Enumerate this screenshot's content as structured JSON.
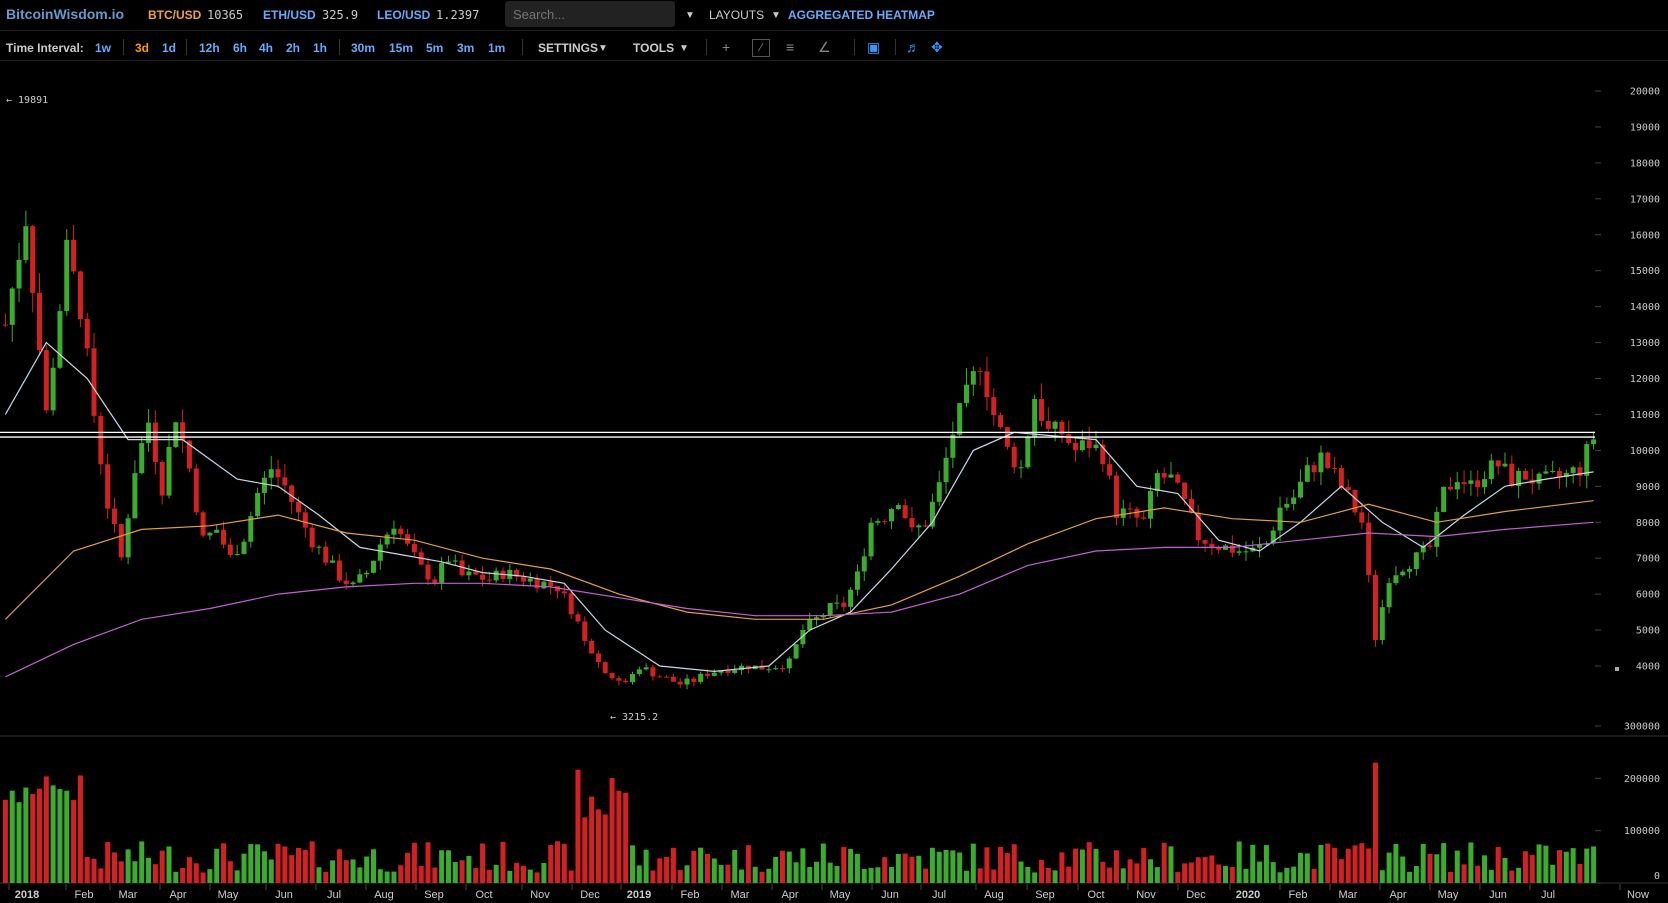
{
  "header": {
    "logo": "BitcoinWisdom.io",
    "tickers": [
      {
        "pair": "BTC/USD",
        "price": "10365",
        "color": "#f0a040"
      },
      {
        "pair": "ETH/USD",
        "price": "325.9",
        "color": "#6af"
      },
      {
        "pair": "LEO/USD",
        "price": "1.2397",
        "color": "#6af"
      }
    ],
    "search_placeholder": "Search...",
    "layouts": "LAYOUTS",
    "heatmap": "AGGREGATED HEATMAP"
  },
  "toolbar": {
    "time_interval_label": "Time Interval:",
    "intervals": [
      "1w",
      "3d",
      "1d",
      "12h",
      "6h",
      "4h",
      "2h",
      "1h",
      "30m",
      "15m",
      "5m",
      "3m",
      "1m"
    ],
    "active_interval": "3d",
    "settings": "SETTINGS",
    "tools": "TOOLS",
    "tool_icons": [
      "crosshair-icon",
      "trendline-icon",
      "horizontal-lines-icon",
      "fan-icon",
      "camera-icon",
      "bell-icon",
      "fullscreen-icon"
    ]
  },
  "chart_data": {
    "type": "candlestick",
    "price_axis": {
      "ticks": [
        20000,
        19000,
        18000,
        17000,
        16000,
        15000,
        14000,
        13000,
        12000,
        11000,
        10000,
        9000,
        8000,
        7000,
        6000,
        5000,
        4000
      ],
      "range": [
        3000,
        20500
      ]
    },
    "volume_axis": {
      "ticks": [
        "300000",
        "200000",
        "100000",
        "0"
      ],
      "range": [
        0,
        380000
      ]
    },
    "time_axis": [
      "2018",
      "Feb",
      "Mar",
      "Apr",
      "May",
      "Jun",
      "Jul",
      "Aug",
      "Sep",
      "Oct",
      "Nov",
      "Dec",
      "2019",
      "Feb",
      "Mar",
      "Apr",
      "May",
      "Jun",
      "Jul",
      "Aug",
      "Sep",
      "Oct",
      "Nov",
      "Dec",
      "2020",
      "Feb",
      "Mar",
      "Apr",
      "May",
      "Jun",
      "Jul",
      "Now"
    ],
    "annotations": {
      "high": "← 19891",
      "low": "← 3215.2"
    },
    "horizontal_lines": [
      10500,
      10370
    ],
    "series_colors": {
      "up": "#3aad2c",
      "down": "#d42020",
      "ma_short": "#c8d8e8",
      "ma_mid": "#e0a040",
      "ma_long": "#c060d0"
    },
    "close_path": [
      [
        0,
        13500
      ],
      [
        3,
        16500
      ],
      [
        6,
        11000
      ],
      [
        9,
        15500
      ],
      [
        11,
        14000
      ],
      [
        13,
        11000
      ],
      [
        15,
        8500
      ],
      [
        17,
        7000
      ],
      [
        19,
        9500
      ],
      [
        21,
        10800
      ],
      [
        23,
        9000
      ],
      [
        25,
        11000
      ],
      [
        27,
        9500
      ],
      [
        29,
        7500
      ],
      [
        31,
        7800
      ],
      [
        33,
        7000
      ],
      [
        35,
        7600
      ],
      [
        37,
        8800
      ],
      [
        39,
        9500
      ],
      [
        41,
        9000
      ],
      [
        43,
        8200
      ],
      [
        45,
        7500
      ],
      [
        47,
        7000
      ],
      [
        49,
        6500
      ],
      [
        51,
        6200
      ],
      [
        53,
        6600
      ],
      [
        55,
        7400
      ],
      [
        57,
        8000
      ],
      [
        59,
        7300
      ],
      [
        61,
        6700
      ],
      [
        63,
        6400
      ],
      [
        65,
        7000
      ],
      [
        67,
        6500
      ],
      [
        69,
        6500
      ],
      [
        71,
        6400
      ],
      [
        73,
        6600
      ],
      [
        75,
        6500
      ],
      [
        77,
        6400
      ],
      [
        79,
        6300
      ],
      [
        81,
        6200
      ],
      [
        83,
        5600
      ],
      [
        85,
        4800
      ],
      [
        87,
        4100
      ],
      [
        89,
        3700
      ],
      [
        91,
        3500
      ],
      [
        93,
        4000
      ],
      [
        95,
        3800
      ],
      [
        97,
        3650
      ],
      [
        99,
        3500
      ],
      [
        101,
        3600
      ],
      [
        103,
        3800
      ],
      [
        105,
        3900
      ],
      [
        107,
        3950
      ],
      [
        109,
        4000
      ],
      [
        111,
        3950
      ],
      [
        113,
        4000
      ],
      [
        115,
        4100
      ],
      [
        117,
        5000
      ],
      [
        119,
        5300
      ],
      [
        121,
        5600
      ],
      [
        123,
        5700
      ],
      [
        125,
        6500
      ],
      [
        127,
        8000
      ],
      [
        129,
        8200
      ],
      [
        131,
        8700
      ],
      [
        133,
        7700
      ],
      [
        135,
        8000
      ],
      [
        137,
        9000
      ],
      [
        139,
        10500
      ],
      [
        141,
        11500
      ],
      [
        143,
        12500
      ],
      [
        145,
        11000
      ],
      [
        147,
        10000
      ],
      [
        149,
        9500
      ],
      [
        151,
        11500
      ],
      [
        153,
        10500
      ],
      [
        155,
        10500
      ],
      [
        157,
        10000
      ],
      [
        159,
        10200
      ],
      [
        161,
        9900
      ],
      [
        163,
        8300
      ],
      [
        165,
        8200
      ],
      [
        167,
        8000
      ],
      [
        169,
        9300
      ],
      [
        171,
        9200
      ],
      [
        173,
        8500
      ],
      [
        175,
        7600
      ],
      [
        177,
        7400
      ],
      [
        179,
        7300
      ],
      [
        181,
        7200
      ],
      [
        183,
        7200
      ],
      [
        185,
        7400
      ],
      [
        187,
        8400
      ],
      [
        189,
        8700
      ],
      [
        191,
        9400
      ],
      [
        193,
        9800
      ],
      [
        195,
        9300
      ],
      [
        197,
        8700
      ],
      [
        199,
        8000
      ],
      [
        201,
        4800
      ],
      [
        203,
        6500
      ],
      [
        205,
        6800
      ],
      [
        207,
        7000
      ],
      [
        209,
        7300
      ],
      [
        211,
        8800
      ],
      [
        213,
        9300
      ],
      [
        215,
        9000
      ],
      [
        217,
        9400
      ],
      [
        219,
        9600
      ],
      [
        221,
        9200
      ],
      [
        223,
        9300
      ],
      [
        225,
        9100
      ],
      [
        227,
        9200
      ],
      [
        229,
        9300
      ],
      [
        231,
        9500
      ],
      [
        233,
        10365
      ]
    ],
    "ma_short_path": [
      [
        0,
        11000
      ],
      [
        6,
        13000
      ],
      [
        12,
        12000
      ],
      [
        18,
        10300
      ],
      [
        26,
        10300
      ],
      [
        34,
        9200
      ],
      [
        40,
        9000
      ],
      [
        46,
        8200
      ],
      [
        52,
        7300
      ],
      [
        58,
        7100
      ],
      [
        64,
        6900
      ],
      [
        70,
        6600
      ],
      [
        76,
        6500
      ],
      [
        82,
        6300
      ],
      [
        88,
        5000
      ],
      [
        96,
        4000
      ],
      [
        104,
        3850
      ],
      [
        112,
        4000
      ],
      [
        118,
        5000
      ],
      [
        124,
        5500
      ],
      [
        130,
        6700
      ],
      [
        136,
        8000
      ],
      [
        142,
        10000
      ],
      [
        148,
        10500
      ],
      [
        154,
        10400
      ],
      [
        160,
        10300
      ],
      [
        166,
        9000
      ],
      [
        172,
        8800
      ],
      [
        178,
        7500
      ],
      [
        184,
        7200
      ],
      [
        190,
        8000
      ],
      [
        196,
        9000
      ],
      [
        202,
        8000
      ],
      [
        208,
        7300
      ],
      [
        214,
        8200
      ],
      [
        220,
        9000
      ],
      [
        226,
        9200
      ],
      [
        233,
        9400
      ]
    ],
    "ma_mid_path": [
      [
        0,
        5300
      ],
      [
        10,
        7200
      ],
      [
        20,
        7800
      ],
      [
        30,
        7900
      ],
      [
        40,
        8200
      ],
      [
        50,
        7700
      ],
      [
        60,
        7500
      ],
      [
        70,
        7000
      ],
      [
        80,
        6700
      ],
      [
        90,
        6000
      ],
      [
        100,
        5500
      ],
      [
        110,
        5300
      ],
      [
        120,
        5300
      ],
      [
        130,
        5700
      ],
      [
        140,
        6500
      ],
      [
        150,
        7400
      ],
      [
        160,
        8100
      ],
      [
        170,
        8400
      ],
      [
        180,
        8100
      ],
      [
        190,
        8000
      ],
      [
        200,
        8500
      ],
      [
        210,
        8000
      ],
      [
        220,
        8300
      ],
      [
        233,
        8600
      ]
    ],
    "ma_long_path": [
      [
        0,
        3700
      ],
      [
        10,
        4600
      ],
      [
        20,
        5300
      ],
      [
        30,
        5600
      ],
      [
        40,
        6000
      ],
      [
        50,
        6200
      ],
      [
        60,
        6300
      ],
      [
        70,
        6300
      ],
      [
        80,
        6200
      ],
      [
        90,
        5900
      ],
      [
        100,
        5600
      ],
      [
        110,
        5400
      ],
      [
        120,
        5400
      ],
      [
        130,
        5500
      ],
      [
        140,
        6000
      ],
      [
        150,
        6800
      ],
      [
        160,
        7200
      ],
      [
        170,
        7300
      ],
      [
        180,
        7300
      ],
      [
        190,
        7500
      ],
      [
        200,
        7700
      ],
      [
        210,
        7600
      ],
      [
        220,
        7800
      ],
      [
        233,
        8000
      ]
    ]
  }
}
